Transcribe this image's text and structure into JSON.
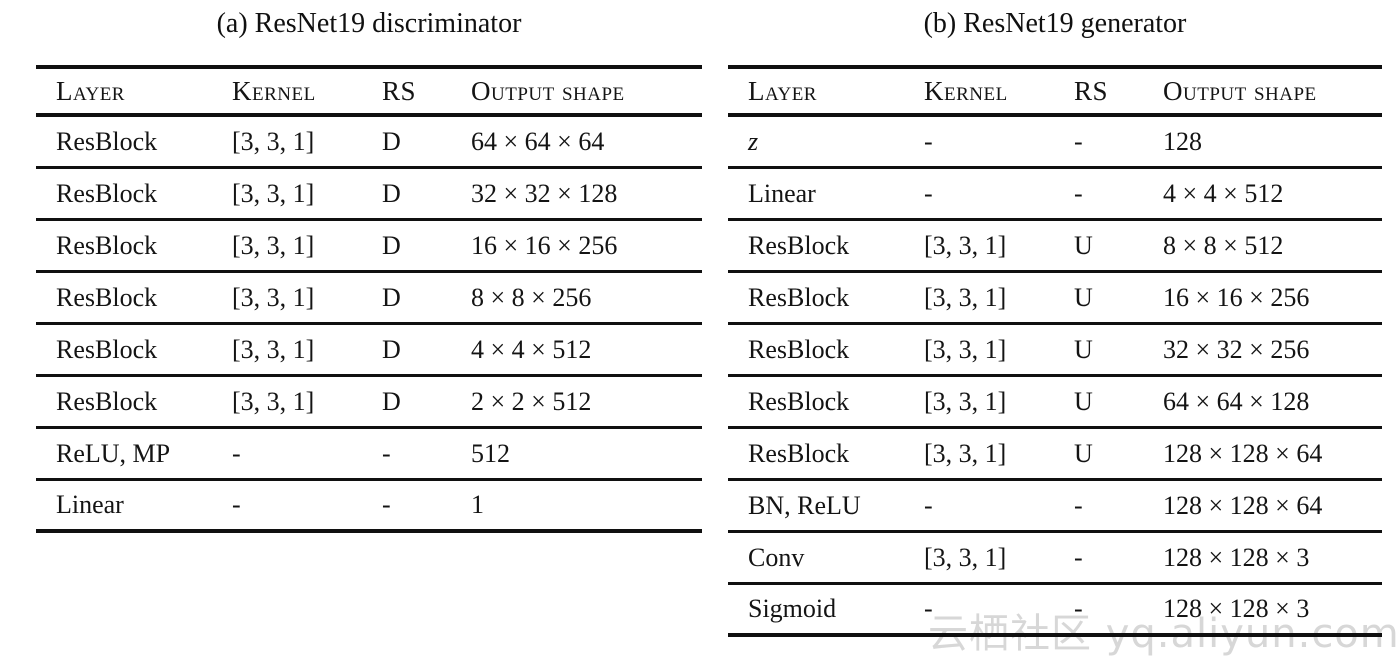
{
  "page": {
    "background_color": "#ffffff",
    "text_color": "#141414",
    "rule_color": "#101010"
  },
  "tables": [
    {
      "id": "a",
      "title": "(a) ResNet19 discriminator",
      "headers": [
        "Layer",
        "Kernel",
        "RS",
        "Output shape"
      ],
      "rows": [
        [
          "ResBlock",
          "[3, 3, 1]",
          "D",
          "64 × 64 × 64"
        ],
        [
          "ResBlock",
          "[3, 3, 1]",
          "D",
          "32 × 32 × 128"
        ],
        [
          "ResBlock",
          "[3, 3, 1]",
          "D",
          "16 × 16 × 256"
        ],
        [
          "ResBlock",
          "[3, 3, 1]",
          "D",
          "8 × 8 × 256"
        ],
        [
          "ResBlock",
          "[3, 3, 1]",
          "D",
          "4 × 4 × 512"
        ],
        [
          "ResBlock",
          "[3, 3, 1]",
          "D",
          "2 × 2 × 512"
        ],
        [
          "ReLU, MP",
          "-",
          "-",
          "512"
        ],
        [
          "Linear",
          "-",
          "-",
          "1"
        ]
      ],
      "italic_cells": []
    },
    {
      "id": "b",
      "title": "(b) ResNet19 generator",
      "headers": [
        "Layer",
        "Kernel",
        "RS",
        "Output shape"
      ],
      "rows": [
        [
          "z",
          "-",
          "-",
          "128"
        ],
        [
          "Linear",
          "-",
          "-",
          "4 × 4 × 512"
        ],
        [
          "ResBlock",
          "[3, 3, 1]",
          "U",
          "8 × 8 × 512"
        ],
        [
          "ResBlock",
          "[3, 3, 1]",
          "U",
          "16 × 16 × 256"
        ],
        [
          "ResBlock",
          "[3, 3, 1]",
          "U",
          "32 × 32 × 256"
        ],
        [
          "ResBlock",
          "[3, 3, 1]",
          "U",
          "64 × 64 × 128"
        ],
        [
          "ResBlock",
          "[3, 3, 1]",
          "U",
          "128 × 128 × 64"
        ],
        [
          "BN, ReLU",
          "-",
          "-",
          "128 × 128 × 64"
        ],
        [
          "Conv",
          "[3, 3, 1]",
          "-",
          "128 × 128 × 3"
        ],
        [
          "Sigmoid",
          "-",
          "-",
          "128 × 128 × 3"
        ]
      ],
      "italic_cells": [
        [
          0,
          0
        ]
      ]
    }
  ],
  "watermark": {
    "text": "云栖社区 yq.aliyun.com",
    "color": "#d7d7d7"
  }
}
